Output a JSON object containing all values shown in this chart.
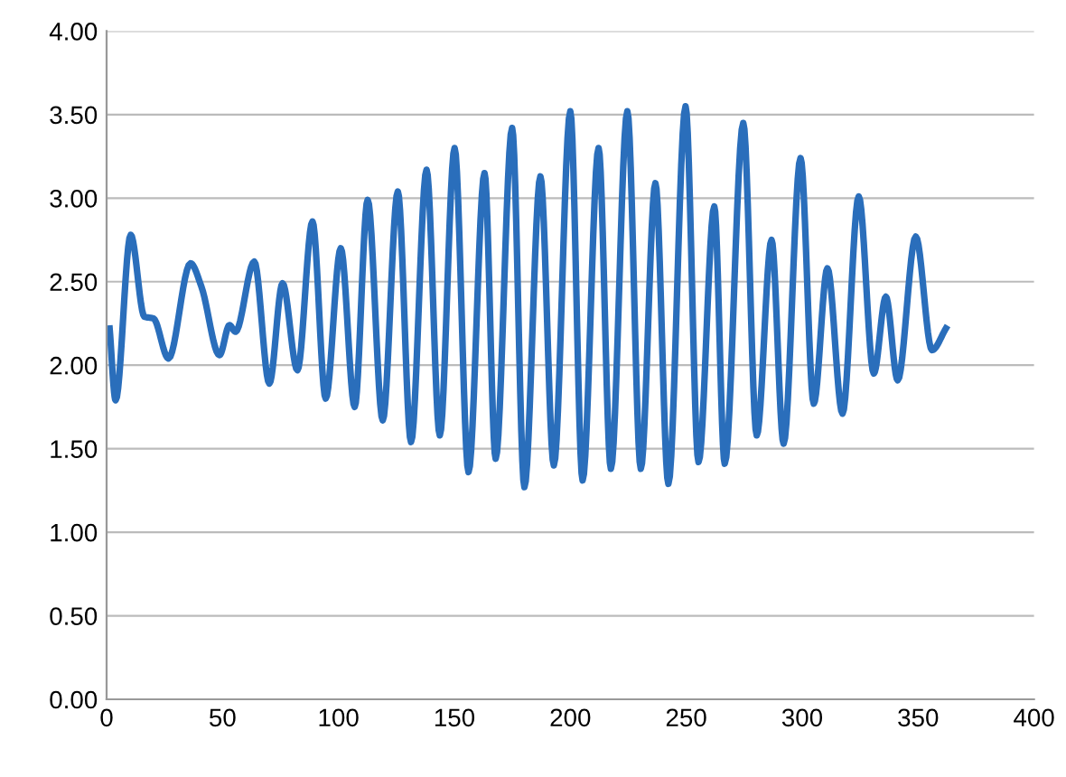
{
  "chart_data": {
    "type": "line",
    "x": [
      1.3,
      3.9,
      10.4,
      16.3,
      20.2,
      26.7,
      36.2,
      40.9,
      48.7,
      53,
      55.6,
      63.7,
      70.2,
      75.9,
      82.3,
      88.8,
      94.5,
      101,
      107,
      112.6,
      119.1,
      125.6,
      131.3,
      138,
      143.7,
      150.1,
      156.1,
      163,
      167.8,
      174.9,
      180.2,
      187.1,
      192.9,
      200,
      205.3,
      212.2,
      217.5,
      224.6,
      230.4,
      236.7,
      242.3,
      249.7,
      255.3,
      262.1,
      266.6,
      274.6,
      280.4,
      286.8,
      292,
      299.3,
      305,
      310.9,
      317.4,
      324.4,
      330.9,
      336.1,
      341.2,
      349,
      356,
      362
    ],
    "series": [
      {
        "color": "#2a6ebb",
        "values": [
          2.22,
          1.79,
          2.78,
          2.29,
          2.28,
          2.04,
          2.61,
          2.47,
          2.06,
          2.24,
          2.2,
          2.62,
          1.89,
          2.49,
          1.97,
          2.86,
          1.8,
          2.7,
          1.75,
          2.99,
          1.67,
          3.04,
          1.54,
          3.17,
          1.58,
          3.3,
          1.36,
          3.15,
          1.44,
          3.42,
          1.27,
          3.13,
          1.4,
          3.52,
          1.31,
          3.3,
          1.38,
          3.52,
          1.38,
          3.09,
          1.29,
          3.55,
          1.42,
          2.95,
          1.41,
          3.45,
          1.58,
          2.75,
          1.53,
          3.24,
          1.77,
          2.58,
          1.71,
          3.01,
          1.95,
          2.41,
          1.91,
          2.77,
          2.09,
          2.22
        ]
      }
    ],
    "xlim": [
      0,
      400
    ],
    "xticks": [
      0,
      50,
      100,
      150,
      200,
      250,
      300,
      350,
      400
    ],
    "ylim": [
      0,
      4
    ],
    "yticks": [
      {
        "value": 0,
        "label": "0.00"
      },
      {
        "value": 0.5,
        "label": "0.50"
      },
      {
        "value": 1,
        "label": "1.00"
      },
      {
        "value": 1.5,
        "label": "1.50"
      },
      {
        "value": 2,
        "label": "2.00"
      },
      {
        "value": 2.5,
        "label": "2.50"
      },
      {
        "value": 3,
        "label": "3.00"
      },
      {
        "value": 3.5,
        "label": "3.50"
      },
      {
        "value": 4,
        "label": "4.00"
      }
    ],
    "grid": "y",
    "line_style": "solid",
    "marker": "none"
  }
}
